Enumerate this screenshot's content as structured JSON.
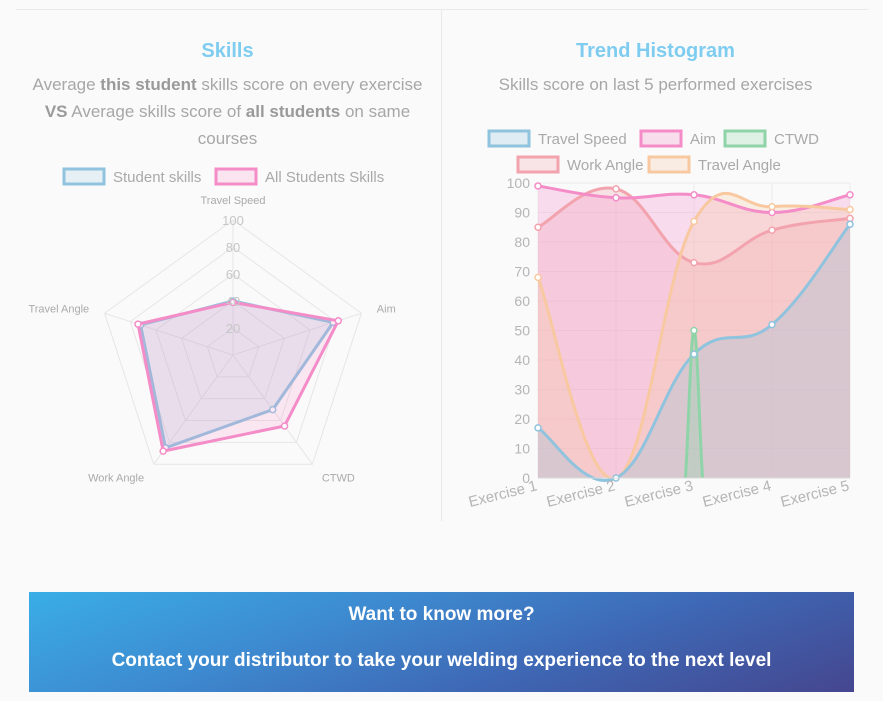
{
  "skills_panel": {
    "title": "Skills",
    "subtitle": {
      "p1": "Average ",
      "b1": "this student",
      "p2": " skills score on every exercise",
      "b2": "VS",
      "p3": " Average skills score of ",
      "b3": "all students",
      "p4": " on same courses"
    }
  },
  "trend_panel": {
    "title": "Trend Histogram",
    "subtitle": "Skills score on last 5 performed exercises"
  },
  "banner": {
    "line1": "Want to know more?",
    "line2": "Contact your distributor to take your welding experience to the next level"
  },
  "chart_data": [
    {
      "type": "radar",
      "categories": [
        "Travel Speed",
        "Aim",
        "CTWD",
        "Work Angle",
        "Travel Angle"
      ],
      "r_ticks": [
        20,
        40,
        60,
        80,
        100
      ],
      "rlim": [
        0,
        100
      ],
      "legend_position": "top",
      "series": [
        {
          "name": "Student skills",
          "values": [
            40,
            78,
            50,
            85,
            72
          ],
          "color": "#90c3de"
        },
        {
          "name": "All Students Skills",
          "values": [
            39,
            82,
            65,
            88,
            74
          ],
          "color": "#f48cc8"
        }
      ]
    },
    {
      "type": "line",
      "categories": [
        "Exercise 1",
        "Exercise 2",
        "Exercise 3",
        "Exercise 4",
        "Exercise 5"
      ],
      "ylim": [
        0,
        100
      ],
      "y_ticks": [
        0,
        10,
        20,
        30,
        40,
        50,
        60,
        70,
        80,
        90,
        100
      ],
      "grid": true,
      "legend_position": "top",
      "series": [
        {
          "name": "Travel Speed",
          "values": [
            17,
            0,
            42,
            52,
            86
          ],
          "color": "#90c3de",
          "fill": "#d8e6ee"
        },
        {
          "name": "Aim",
          "values": [
            99,
            95,
            96,
            90,
            96
          ],
          "color": "#f48cc8",
          "fill": "#f8dbea"
        },
        {
          "name": "CTWD",
          "values": [
            null,
            null,
            50,
            null,
            null
          ],
          "color": "#8fd4a8",
          "fill": "#dff2e6"
        },
        {
          "name": "Work Angle",
          "values": [
            85,
            98,
            73,
            84,
            88
          ],
          "color": "#f2a3ad",
          "fill": "#f7c9cf"
        },
        {
          "name": "Travel Angle",
          "values": [
            68,
            0,
            87,
            92,
            91
          ],
          "color": "#f8c9a0",
          "fill": "#fbe6d6"
        }
      ]
    }
  ]
}
